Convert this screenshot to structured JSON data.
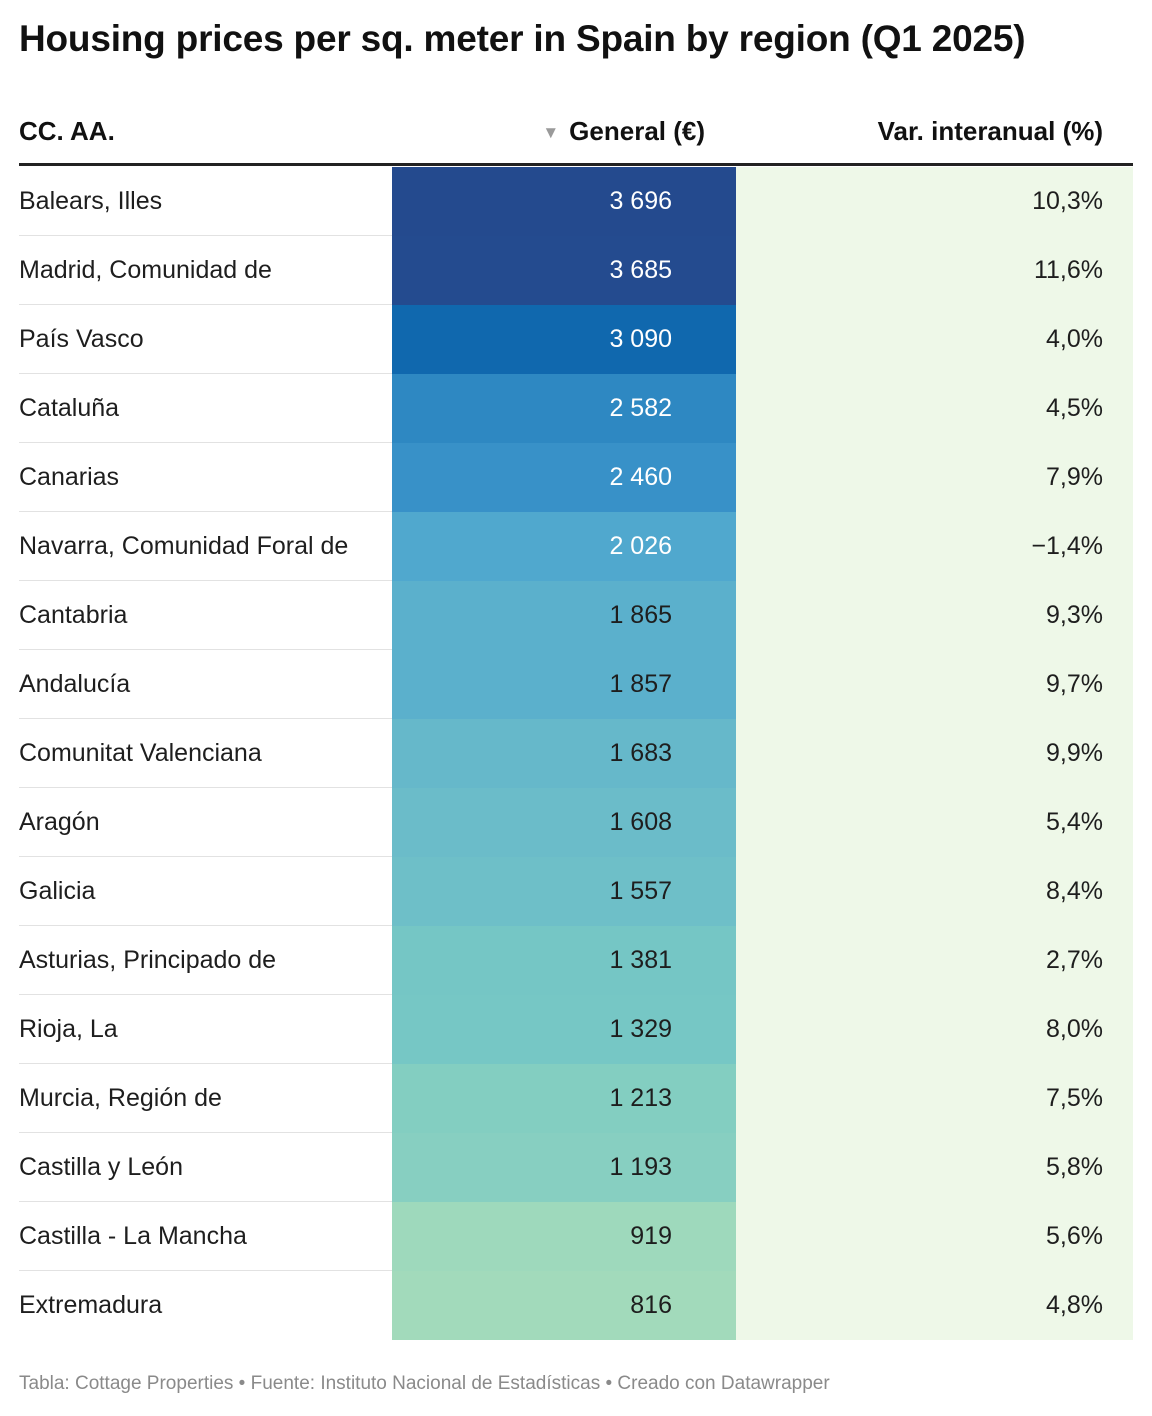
{
  "title": "Housing prices per sq. meter in Spain by region (Q1 2025)",
  "columns": {
    "region": "CC. AA.",
    "general": "General (€)",
    "variation": "Var. interanual (%)"
  },
  "sort_icon": "sort-descending-icon",
  "footer": "Tabla: Cottage Properties • Fuente: Instituto Nacional de Estadísticas • Creado con Datawrapper",
  "colors": {
    "scale_high": "#244a8e",
    "scale_low": "#a2dabb",
    "variation_bg": "#eef8e8"
  },
  "chart_data": {
    "type": "table",
    "rows": [
      {
        "region": "Balears, Illes",
        "general": 3696,
        "general_label": "3 696",
        "var": 10.3,
        "var_label": "10,3%"
      },
      {
        "region": "Madrid, Comunidad de",
        "general": 3685,
        "general_label": "3 685",
        "var": 11.6,
        "var_label": "11,6%"
      },
      {
        "region": "País Vasco",
        "general": 3090,
        "general_label": "3 090",
        "var": 4.0,
        "var_label": "4,0%"
      },
      {
        "region": "Cataluña",
        "general": 2582,
        "general_label": "2 582",
        "var": 4.5,
        "var_label": "4,5%"
      },
      {
        "region": "Canarias",
        "general": 2460,
        "general_label": "2 460",
        "var": 7.9,
        "var_label": "7,9%"
      },
      {
        "region": "Navarra, Comunidad Foral de",
        "general": 2026,
        "general_label": "2 026",
        "var": -1.4,
        "var_label": "−1,4%"
      },
      {
        "region": "Cantabria",
        "general": 1865,
        "general_label": "1 865",
        "var": 9.3,
        "var_label": "9,3%"
      },
      {
        "region": "Andalucía",
        "general": 1857,
        "general_label": "1 857",
        "var": 9.7,
        "var_label": "9,7%"
      },
      {
        "region": "Comunitat Valenciana",
        "general": 1683,
        "general_label": "1 683",
        "var": 9.9,
        "var_label": "9,9%"
      },
      {
        "region": "Aragón",
        "general": 1608,
        "general_label": "1 608",
        "var": 5.4,
        "var_label": "5,4%"
      },
      {
        "region": "Galicia",
        "general": 1557,
        "general_label": "1 557",
        "var": 8.4,
        "var_label": "8,4%"
      },
      {
        "region": "Asturias, Principado de",
        "general": 1381,
        "general_label": "1 381",
        "var": 2.7,
        "var_label": "2,7%"
      },
      {
        "region": "Rioja, La",
        "general": 1329,
        "general_label": "1 329",
        "var": 8.0,
        "var_label": "8,0%"
      },
      {
        "region": "Murcia, Región de",
        "general": 1213,
        "general_label": "1 213",
        "var": 7.5,
        "var_label": "7,5%"
      },
      {
        "region": "Castilla y León",
        "general": 1193,
        "general_label": "1 193",
        "var": 5.8,
        "var_label": "5,8%"
      },
      {
        "region": "Castilla - La Mancha",
        "general": 919,
        "general_label": "919",
        "var": 5.6,
        "var_label": "5,6%"
      },
      {
        "region": "Extremadura",
        "general": 816,
        "general_label": "816",
        "var": 4.8,
        "var_label": "4,8%"
      }
    ]
  }
}
